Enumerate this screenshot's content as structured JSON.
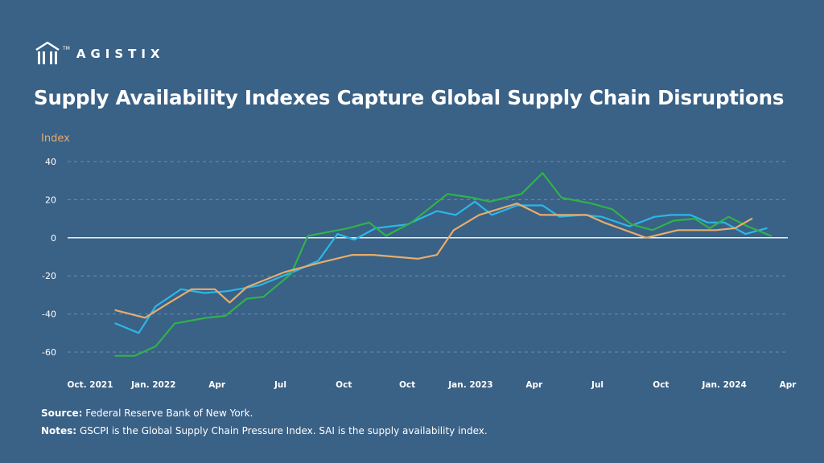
{
  "brand": {
    "name": "AGISTIX",
    "tm": "TM"
  },
  "title": "Supply Availability Indexes Capture Global Supply Chain Disruptions",
  "footer": {
    "source_label": "Source:",
    "source_text": "Federal Reserve Bank of New York.",
    "notes_label": "Notes:",
    "notes_text": "GSCPI is the Global Supply Chain Pressure Index. SAI is the supply availability index."
  },
  "chart_data": {
    "type": "line",
    "ylabel": "Index",
    "ylim": [
      -65,
      40
    ],
    "yticks": [
      40,
      20,
      0,
      -20,
      -40,
      -60
    ],
    "xlim": [
      0,
      30
    ],
    "xticks": [
      {
        "x": 0,
        "label": "Oct. 2021"
      },
      {
        "x": 3,
        "label": "Jan. 2022"
      },
      {
        "x": 6,
        "label": "Apr"
      },
      {
        "x": 9,
        "label": "Jul"
      },
      {
        "x": 12,
        "label": "Oct"
      },
      {
        "x": 15,
        "label": "Oct"
      },
      {
        "x": 18,
        "label": "Jan. 2023"
      },
      {
        "x": 21,
        "label": "Apr"
      },
      {
        "x": 24,
        "label": "Jul"
      },
      {
        "x": 27,
        "label": "Oct"
      },
      {
        "x": 30,
        "label": "Jan. 2024"
      },
      {
        "x": 33,
        "label": "Apr"
      }
    ],
    "grid": true,
    "series": [
      {
        "color": "#2bb7e8",
        "points": [
          [
            1.2,
            -45
          ],
          [
            2.3,
            -50
          ],
          [
            3.1,
            -36
          ],
          [
            4.3,
            -27
          ],
          [
            5.4,
            -29
          ],
          [
            6.5,
            -28
          ],
          [
            8,
            -25
          ],
          [
            9.8,
            -17
          ],
          [
            10.8,
            -12
          ],
          [
            11.7,
            2
          ],
          [
            12.5,
            -1
          ],
          [
            13.5,
            5
          ],
          [
            15,
            7
          ],
          [
            16.4,
            14
          ],
          [
            17.3,
            12
          ],
          [
            18.2,
            19
          ],
          [
            19,
            12
          ],
          [
            20.2,
            17
          ],
          [
            21.4,
            17
          ],
          [
            22.2,
            11
          ],
          [
            23.3,
            12
          ],
          [
            24.2,
            11
          ],
          [
            25.5,
            6
          ],
          [
            26.7,
            11
          ],
          [
            27.5,
            12
          ],
          [
            28.4,
            12
          ],
          [
            29.2,
            8
          ],
          [
            30,
            8
          ],
          [
            31,
            2
          ],
          [
            32,
            5
          ]
        ]
      },
      {
        "color": "#2fb34a",
        "points": [
          [
            1.2,
            -62
          ],
          [
            2.1,
            -62
          ],
          [
            3.1,
            -57
          ],
          [
            4,
            -45
          ],
          [
            5.5,
            -42
          ],
          [
            6.4,
            -41
          ],
          [
            7.4,
            -32
          ],
          [
            8.2,
            -31
          ],
          [
            9.5,
            -19
          ],
          [
            10.3,
            1
          ],
          [
            12.2,
            5
          ],
          [
            13.2,
            8
          ],
          [
            14,
            1
          ],
          [
            15.2,
            8
          ],
          [
            16.9,
            23
          ],
          [
            18.1,
            21
          ],
          [
            18.9,
            19
          ],
          [
            20.4,
            23
          ],
          [
            21.4,
            34
          ],
          [
            22.3,
            21
          ],
          [
            23.7,
            18
          ],
          [
            24.7,
            15
          ],
          [
            25.6,
            7
          ],
          [
            26.6,
            4
          ],
          [
            27.6,
            9
          ],
          [
            28.6,
            10
          ],
          [
            29.3,
            5
          ],
          [
            30.2,
            11
          ],
          [
            31.1,
            6
          ],
          [
            32.2,
            1
          ]
        ]
      },
      {
        "color": "#e7ad6b",
        "points": [
          [
            1.2,
            -38
          ],
          [
            2.6,
            -42
          ],
          [
            3.6,
            -35
          ],
          [
            4.8,
            -27
          ],
          [
            5.9,
            -27
          ],
          [
            6.6,
            -34
          ],
          [
            7.4,
            -26
          ],
          [
            9.2,
            -18
          ],
          [
            10.9,
            -13
          ],
          [
            12.4,
            -9
          ],
          [
            13.4,
            -9
          ],
          [
            15.5,
            -11
          ],
          [
            16.4,
            -9
          ],
          [
            17.2,
            4
          ],
          [
            18.4,
            12
          ],
          [
            20.2,
            18
          ],
          [
            21.3,
            12
          ],
          [
            22.2,
            12
          ],
          [
            23.5,
            12
          ],
          [
            24.3,
            8
          ],
          [
            26.3,
            0
          ],
          [
            27.8,
            4
          ],
          [
            28.6,
            4
          ],
          [
            29.6,
            4
          ],
          [
            30.5,
            5
          ],
          [
            31.3,
            10
          ]
        ]
      }
    ]
  }
}
